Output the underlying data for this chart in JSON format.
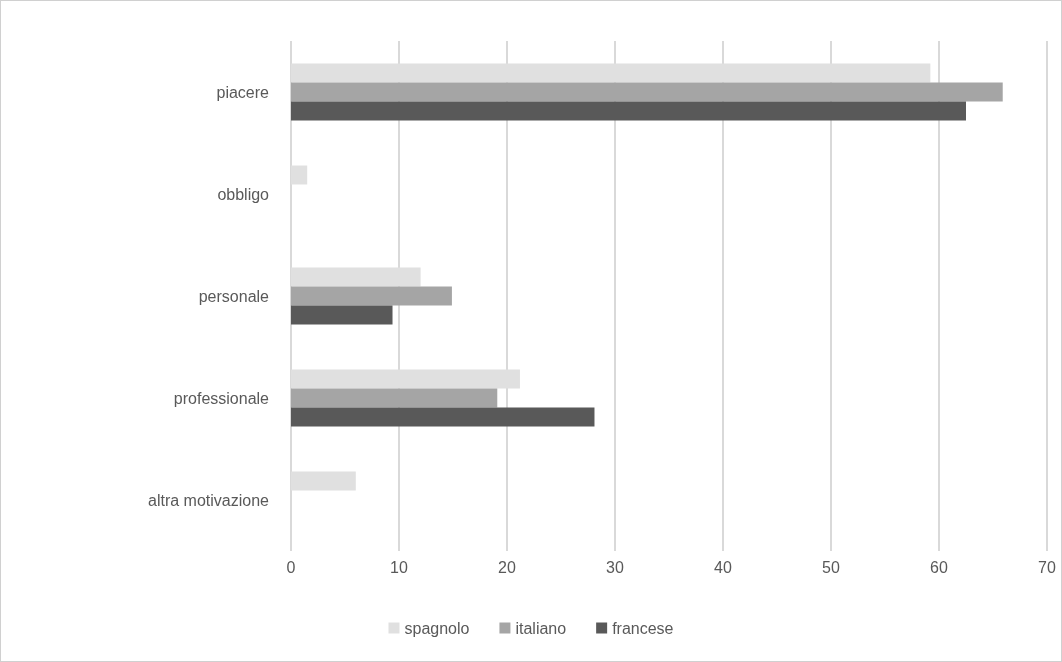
{
  "chart_data": {
    "type": "bar",
    "orientation": "horizontal",
    "categories": [
      "piacere",
      "obbligo",
      "personale",
      "professionale",
      "altra motivazione"
    ],
    "series": [
      {
        "name": "spagnolo",
        "color": "#e0e0e0",
        "values": [
          59.2,
          1.5,
          12.0,
          21.2,
          6.0
        ]
      },
      {
        "name": "italiano",
        "color": "#a5a5a5",
        "values": [
          65.9,
          0,
          14.9,
          19.1,
          0
        ]
      },
      {
        "name": "francese",
        "color": "#595959",
        "values": [
          62.5,
          0,
          9.4,
          28.1,
          0
        ]
      }
    ],
    "xlim": [
      0,
      70
    ],
    "xticks": [
      0,
      10,
      20,
      30,
      40,
      50,
      60,
      70
    ],
    "grid": "x",
    "legend": "bottom"
  }
}
